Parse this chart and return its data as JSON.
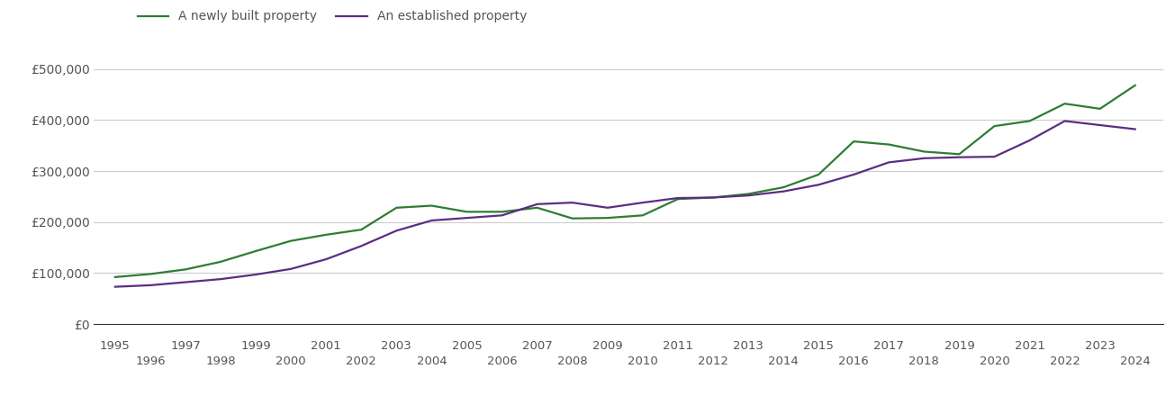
{
  "newly_built": {
    "label": "A newly built property",
    "color": "#2e7d32",
    "data": {
      "1995": 92000,
      "1996": 98000,
      "1997": 107000,
      "1998": 122000,
      "1999": 143000,
      "2000": 163000,
      "2001": 175000,
      "2002": 185000,
      "2003": 228000,
      "2004": 232000,
      "2005": 220000,
      "2006": 220000,
      "2007": 228000,
      "2008": 207000,
      "2009": 208000,
      "2010": 213000,
      "2011": 245000,
      "2012": 248000,
      "2013": 255000,
      "2014": 268000,
      "2015": 293000,
      "2016": 358000,
      "2017": 352000,
      "2018": 338000,
      "2019": 333000,
      "2020": 388000,
      "2021": 398000,
      "2022": 432000,
      "2023": 422000,
      "2024": 468000
    }
  },
  "established": {
    "label": "An established property",
    "color": "#5c2d82",
    "data": {
      "1995": 73000,
      "1996": 76000,
      "1997": 82000,
      "1998": 88000,
      "1999": 97000,
      "2000": 108000,
      "2001": 127000,
      "2002": 153000,
      "2003": 183000,
      "2004": 203000,
      "2005": 208000,
      "2006": 213000,
      "2007": 235000,
      "2008": 238000,
      "2009": 228000,
      "2010": 238000,
      "2011": 247000,
      "2012": 248000,
      "2013": 252000,
      "2014": 260000,
      "2015": 273000,
      "2016": 293000,
      "2017": 317000,
      "2018": 325000,
      "2019": 327000,
      "2020": 328000,
      "2021": 360000,
      "2022": 398000,
      "2023": 390000,
      "2024": 382000
    }
  },
  "ylim": [
    0,
    540000
  ],
  "yticks": [
    0,
    100000,
    200000,
    300000,
    400000,
    500000
  ],
  "ytick_labels": [
    "£0",
    "£100,000",
    "£200,000",
    "£300,000",
    "£400,000",
    "£500,000"
  ],
  "xtick_odd": [
    1995,
    1997,
    1999,
    2001,
    2003,
    2005,
    2007,
    2009,
    2011,
    2013,
    2015,
    2017,
    2019,
    2021,
    2023
  ],
  "xtick_even": [
    1996,
    1998,
    2000,
    2002,
    2004,
    2006,
    2008,
    2010,
    2012,
    2014,
    2016,
    2018,
    2020,
    2022,
    2024
  ],
  "xlim": [
    1994.4,
    2024.8
  ],
  "background_color": "#ffffff",
  "grid_color": "#cccccc",
  "text_color": "#555555",
  "line_width": 1.6
}
